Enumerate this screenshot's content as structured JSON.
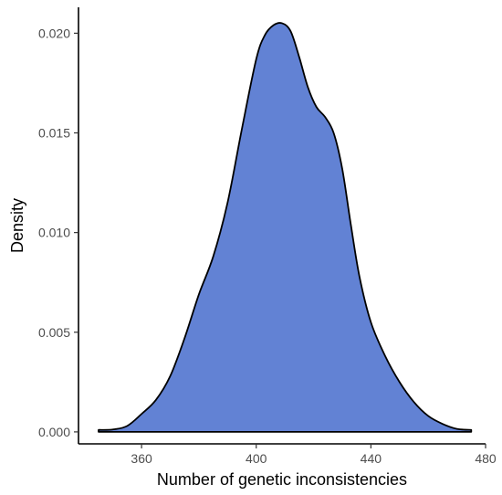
{
  "chart_data": {
    "type": "area",
    "title": "",
    "xlabel": "Number of genetic inconsistencies",
    "ylabel": "Density",
    "xlim": [
      338,
      480
    ],
    "ylim": [
      -0.0006,
      0.0213
    ],
    "x_ticks": [
      360,
      400,
      440,
      480
    ],
    "y_ticks": [
      0.0,
      0.005,
      0.01,
      0.015,
      0.02
    ],
    "x_tick_labels": [
      "360",
      "400",
      "440",
      "480"
    ],
    "y_tick_labels": [
      "0.000",
      "0.005",
      "0.010",
      "0.015",
      "0.020"
    ],
    "grid": false,
    "legend": "none",
    "fill_color": "#6282d4",
    "line_color": "#000000",
    "series": [
      {
        "x": [
          345,
          350,
          355,
          360,
          365,
          370,
          375,
          380,
          385,
          390,
          395,
          400,
          403,
          406,
          409,
          412,
          415,
          418,
          421,
          424,
          427,
          430,
          433,
          436,
          440,
          445,
          450,
          455,
          460,
          465,
          470,
          475
        ],
        "y": [
          0.0001,
          0.00012,
          0.0003,
          0.0009,
          0.0016,
          0.0028,
          0.0047,
          0.0069,
          0.0088,
          0.0115,
          0.0152,
          0.0187,
          0.0199,
          0.0204,
          0.0205,
          0.0201,
          0.0188,
          0.0173,
          0.0163,
          0.0158,
          0.015,
          0.0132,
          0.0104,
          0.0078,
          0.0055,
          0.0038,
          0.0025,
          0.0015,
          0.0008,
          0.0004,
          0.00015,
          0.0001
        ]
      }
    ]
  }
}
